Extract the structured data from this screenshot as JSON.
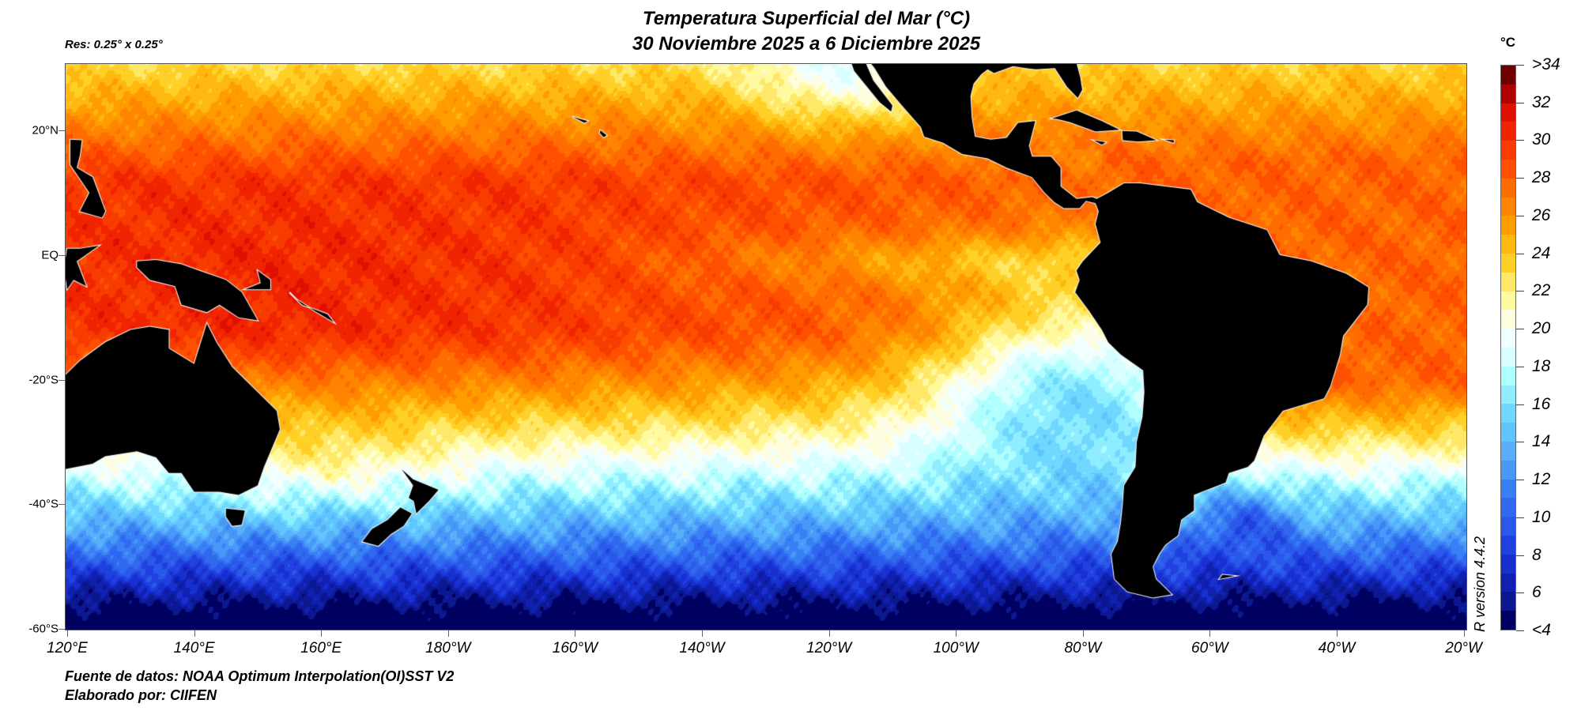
{
  "header": {
    "title_line1": "Temperatura Superficial del Mar (°C)",
    "title_line2": "30 Noviembre 2025 a 6 Diciembre 2025",
    "resolution": "Res: 0.25° x 0.25°"
  },
  "axes": {
    "lat_labels": [
      "20°N",
      "EQ",
      "-20°S",
      "-40°S",
      "-60°S"
    ],
    "lon_labels": [
      "120°E",
      "140°E",
      "160°E",
      "180°W",
      "160°W",
      "140°W",
      "120°W",
      "100°W",
      "80°W",
      "60°W",
      "40°W",
      "20°W"
    ]
  },
  "colorbar": {
    "unit": "°C",
    "labels": [
      ">34",
      "32",
      "30",
      "28",
      "26",
      "24",
      "22",
      "20",
      "18",
      "16",
      "14",
      "12",
      "10",
      "8",
      "6",
      "<4"
    ],
    "colors_bottom_to_top": [
      "#000060",
      "#0c1890",
      "#1020b0",
      "#1830d0",
      "#2040e0",
      "#2a58e8",
      "#3068f0",
      "#3a80f5",
      "#4898f8",
      "#58b0fb",
      "#60c4fd",
      "#70d8ff",
      "#8eeeff",
      "#b0ffff",
      "#d8ffff",
      "#f0ffff",
      "#fffde0",
      "#fffaa0",
      "#ffe868",
      "#ffd028",
      "#ffb810",
      "#ff9c00",
      "#ff8400",
      "#ff6c00",
      "#ff5000",
      "#f83c00",
      "#f02400",
      "#e01000",
      "#b00000",
      "#700000"
    ]
  },
  "footer": {
    "source": "Fuente de datos: NOAA Optimum Interpolation(OI)SST V2",
    "author": "Elaborado por: CIIFEN",
    "version": "R version 4.4.2"
  },
  "land_color": "#000000"
}
